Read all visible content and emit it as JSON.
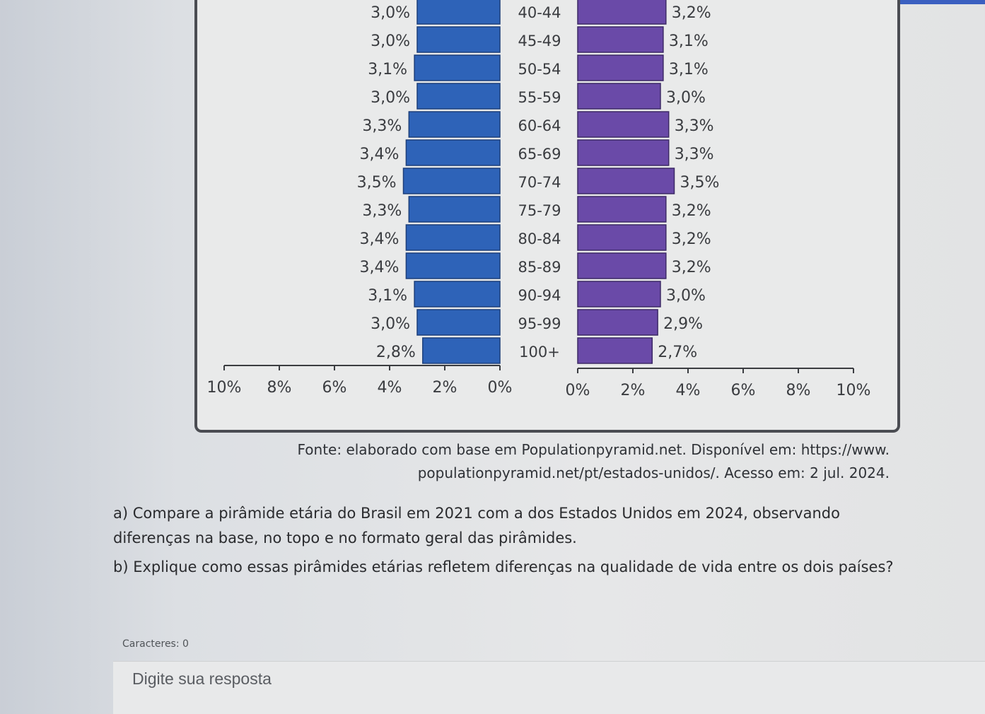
{
  "chart_data": {
    "type": "bar",
    "categories": [
      "40-44",
      "45-49",
      "50-54",
      "55-59",
      "60-64",
      "65-69",
      "70-74",
      "75-79",
      "80-84",
      "85-89",
      "90-94",
      "95-99",
      "100+"
    ],
    "series": [
      {
        "side": "left",
        "color": "#2e63b8",
        "labels": [
          "3,0%",
          "3,0%",
          "3,1%",
          "3,0%",
          "3,3%",
          "3,4%",
          "3,5%",
          "3,3%",
          "3,4%",
          "3,4%",
          "3,1%",
          "3,0%",
          "2,8%"
        ],
        "values": [
          3.0,
          3.0,
          3.1,
          3.0,
          3.3,
          3.4,
          3.5,
          3.3,
          3.4,
          3.4,
          3.1,
          3.0,
          2.8
        ]
      },
      {
        "side": "right",
        "color": "#6a4aa8",
        "labels": [
          "3,2%",
          "3,1%",
          "3,1%",
          "3,0%",
          "3,3%",
          "3,3%",
          "3,5%",
          "3,2%",
          "3,2%",
          "3,2%",
          "3,0%",
          "2,9%",
          "2,7%"
        ],
        "values": [
          3.2,
          3.1,
          3.1,
          3.0,
          3.3,
          3.3,
          3.5,
          3.2,
          3.2,
          3.2,
          3.0,
          2.9,
          2.7
        ]
      }
    ],
    "xticks_left": [
      "10%",
      "8%",
      "6%",
      "4%",
      "2%",
      "0%"
    ],
    "xticks_right": [
      "0%",
      "2%",
      "4%",
      "6%",
      "8%",
      "10%"
    ],
    "xlim": [
      0,
      10
    ]
  },
  "source": {
    "line1": "Fonte: elaborado com base em Populationpyramid.net. Disponível em: https://www.",
    "line2": "populationpyramid.net/pt/estados-unidos/. Acesso em: 2 jul. 2024."
  },
  "questions": {
    "a_line1": "a) Compare a pirâmide etária do Brasil em 2021 com a dos Estados Unidos em 2024, observando",
    "a_line2": "diferenças na base, no topo e no formato geral das pirâmides.",
    "b": "b) Explique como essas pirâmides etárias refletem diferenças na qualidade de vida entre os dois países?"
  },
  "answer": {
    "char_count": "Caracteres: 0",
    "placeholder": "Digite sua resposta"
  }
}
